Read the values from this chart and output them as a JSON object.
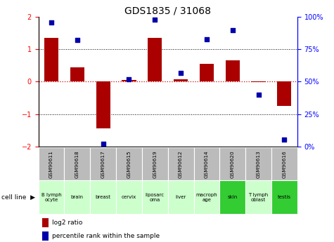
{
  "title": "GDS1835 / 31068",
  "samples": [
    "GSM90611",
    "GSM90618",
    "GSM90617",
    "GSM90615",
    "GSM90619",
    "GSM90612",
    "GSM90614",
    "GSM90620",
    "GSM90613",
    "GSM90616"
  ],
  "cell_lines": [
    "B lymph\nocyte",
    "brain",
    "breast",
    "cervix",
    "liposarcoma",
    "liver",
    "macrophage",
    "skin",
    "T lymphoblast",
    "testis"
  ],
  "cell_lines_display": [
    "B lymph\nocyte",
    "brain",
    "breast",
    "cervix",
    "liposarc\noma",
    "liver",
    "macroph\nage",
    "skin",
    "T lymph\noblast",
    "testis"
  ],
  "cell_line_colors": [
    "#ccffcc",
    "#ccffcc",
    "#ccffcc",
    "#ccffcc",
    "#ccffcc",
    "#ccffcc",
    "#ccffcc",
    "#33cc33",
    "#ccffcc",
    "#33cc33"
  ],
  "log2_ratio": [
    1.35,
    0.45,
    -1.45,
    0.05,
    1.35,
    0.08,
    0.55,
    0.65,
    -0.02,
    -0.75
  ],
  "percentile_rank": [
    96,
    82,
    2,
    52,
    98,
    57,
    83,
    90,
    40,
    5
  ],
  "ylim_left": [
    -2,
    2
  ],
  "ylim_right": [
    0,
    100
  ],
  "bar_color": "#aa0000",
  "dot_color": "#0000aa",
  "zero_line_color": "#dd0000",
  "header_bg": "#bbbbbb",
  "left_axis_ticks": [
    -2,
    -1,
    0,
    1,
    2
  ],
  "right_axis_ticks": [
    0,
    25,
    50,
    75,
    100
  ],
  "right_axis_labels": [
    "0%",
    "25%",
    "50%",
    "75%",
    "100%"
  ]
}
